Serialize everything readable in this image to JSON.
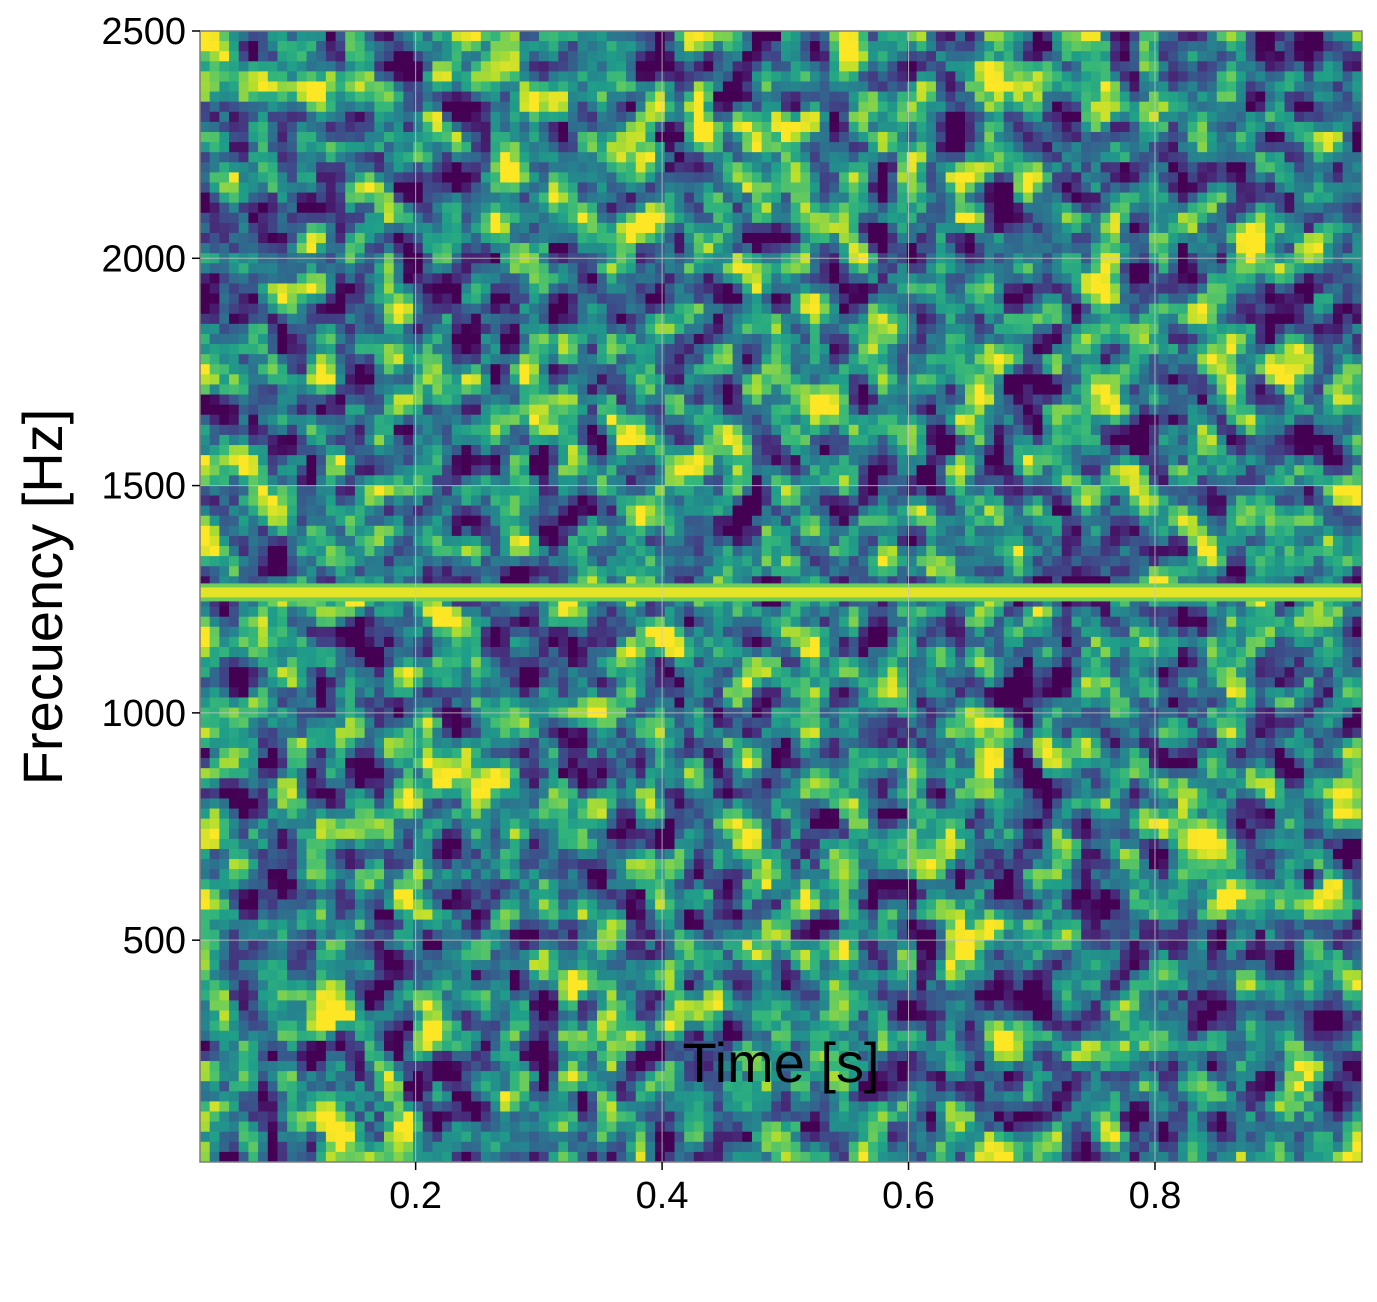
{
  "chart_data": {
    "type": "heatmap",
    "title": "",
    "xlabel": "Time [s]",
    "ylabel": "Frecuency [Hz]",
    "xlim": [
      0.025,
      0.968
    ],
    "ylim": [
      12,
      2500
    ],
    "xticks": [
      0.2,
      0.4,
      0.6,
      0.8
    ],
    "xtick_labels": [
      "0.2",
      "0.4",
      "0.6",
      "0.8"
    ],
    "yticks": [
      500,
      1000,
      1500,
      2000,
      2500
    ],
    "ytick_labels": [
      "500",
      "1000",
      "1500",
      "2000",
      "2500"
    ],
    "grid": true,
    "colormap": "viridis",
    "background_noise": "broadband random noise over the full time-frequency range",
    "features": [
      {
        "kind": "constant tone",
        "frequency_hz": 1265,
        "time_range_s": [
          0.025,
          0.968
        ],
        "intensity": "maximum (yellow)"
      }
    ],
    "colors": {
      "low": "#440154",
      "mid": "#21918c",
      "high": "#fde725",
      "grid": "#c8c8c8",
      "axes": "#7f7f7f"
    }
  }
}
